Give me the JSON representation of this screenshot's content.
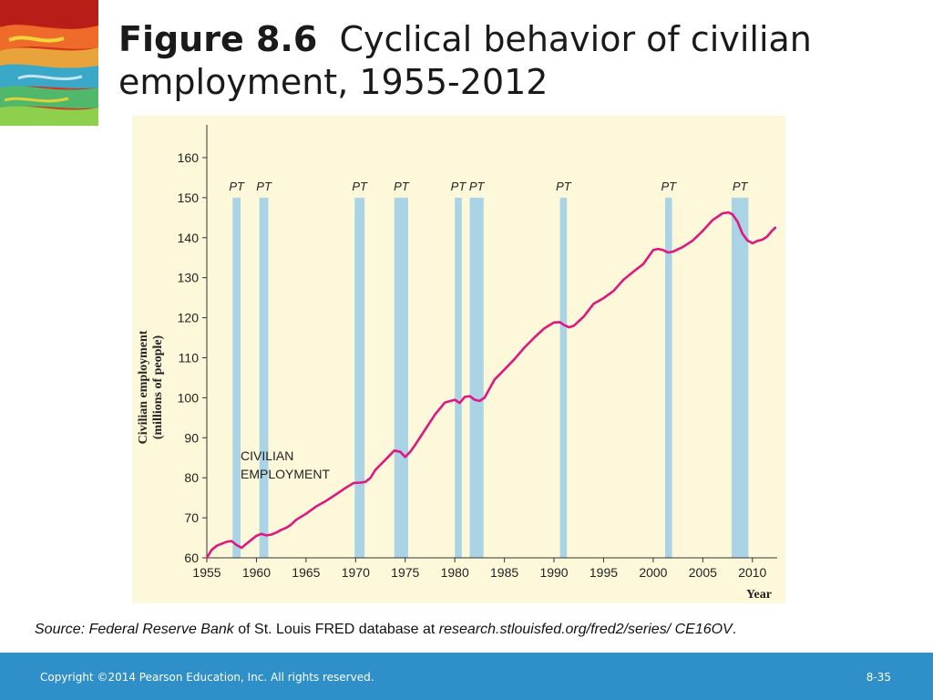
{
  "title": {
    "number": "Figure 8.6",
    "text": "Cyclical behavior of civilian employment, 1955-2012"
  },
  "chart_data": {
    "type": "line",
    "ylabel_line1": "Civilian employment",
    "ylabel_line2": "(millions of people)",
    "xlabel": "Year",
    "xlim": [
      1955,
      2012.5
    ],
    "ylim": [
      60,
      165
    ],
    "yticks": [
      60,
      70,
      80,
      90,
      100,
      110,
      120,
      130,
      140,
      150,
      160
    ],
    "xticks": [
      1955,
      1960,
      1965,
      1970,
      1975,
      1980,
      1985,
      1990,
      1995,
      2000,
      2005,
      2010
    ],
    "annotation": [
      "CIVILIAN",
      "EMPLOYMENT"
    ],
    "shading_label": "PT",
    "recessions": [
      [
        1957.6,
        1958.4
      ],
      [
        1960.3,
        1961.2
      ],
      [
        1969.9,
        1970.9
      ],
      [
        1973.9,
        1975.3
      ],
      [
        1980.0,
        1980.7
      ],
      [
        1981.5,
        1982.9
      ],
      [
        1990.6,
        1991.3
      ],
      [
        2001.2,
        2001.9
      ],
      [
        2007.9,
        2009.6
      ]
    ],
    "series": [
      {
        "color": "#e0177f",
        "x": [
          1955,
          1955.5,
          1956,
          1956.5,
          1957,
          1957.5,
          1958,
          1958.5,
          1959,
          1959.5,
          1960,
          1960.5,
          1961,
          1961.5,
          1962,
          1962.5,
          1963,
          1963.5,
          1964,
          1965,
          1966,
          1967,
          1968,
          1969,
          1969.8,
          1970.5,
          1971,
          1971.5,
          1972,
          1973,
          1973.9,
          1974.5,
          1975,
          1975.5,
          1976,
          1977,
          1978,
          1979,
          1980,
          1980.5,
          1981,
          1981.5,
          1982,
          1982.5,
          1983,
          1984,
          1985,
          1986,
          1987,
          1988,
          1989,
          1990,
          1990.6,
          1991,
          1991.5,
          1992,
          1993,
          1994,
          1995,
          1996,
          1997,
          1998,
          1999,
          2000,
          2000.5,
          2001,
          2001.5,
          2002,
          2003,
          2004,
          2005,
          2006,
          2007,
          2007.6,
          2008,
          2008.5,
          2009,
          2009.5,
          2010,
          2010.5,
          2011,
          2011.5,
          2012,
          2012.3
        ],
        "y": [
          60,
          62,
          63,
          63.5,
          64,
          64.2,
          63.2,
          62.5,
          63.5,
          64.5,
          65.5,
          66,
          65.6,
          65.8,
          66.3,
          67,
          67.5,
          68.3,
          69.5,
          71,
          72.8,
          74.2,
          75.8,
          77.5,
          78.7,
          78.8,
          79,
          80,
          82,
          84.5,
          86.8,
          86.5,
          85.2,
          86.5,
          88.2,
          92,
          95.8,
          98.8,
          99.5,
          98.7,
          100.2,
          100.4,
          99.5,
          99.2,
          100,
          104.5,
          107,
          109.6,
          112.5,
          115,
          117.3,
          118.8,
          118.9,
          118.2,
          117.6,
          118,
          120.3,
          123.5,
          124.9,
          126.7,
          129.5,
          131.5,
          133.4,
          136.9,
          137.2,
          136.9,
          136.3,
          136.5,
          137.7,
          139.3,
          141.7,
          144.4,
          146.1,
          146.3,
          145.8,
          144,
          141,
          139.3,
          138.6,
          139.2,
          139.5,
          140.3,
          141.8,
          142.5
        ]
      }
    ]
  },
  "source": {
    "prefix": "Source: Federal Reserve Bank",
    "middle": " of St. Louis FRED database at ",
    "url": "research.stlouisfed.org/fred2/series/ CE16OV",
    "end": "."
  },
  "footer": {
    "copyright": "Copyright ©2014 Pearson Education, Inc. All rights reserved.",
    "page": "8-35"
  }
}
